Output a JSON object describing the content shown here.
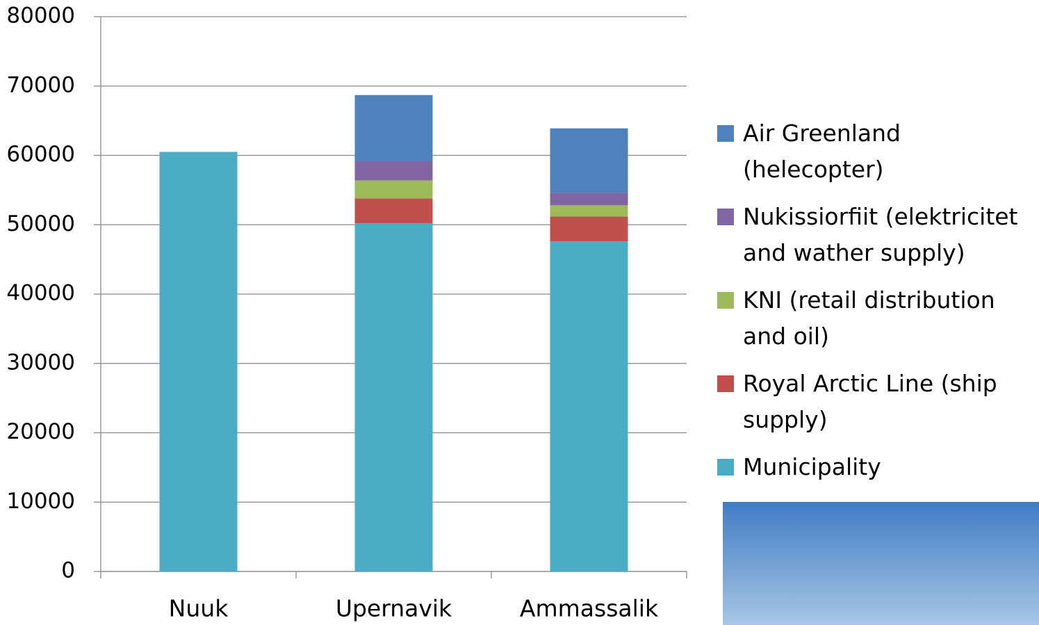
{
  "chart_data": {
    "type": "stacked_bar",
    "categories": [
      "Nuuk",
      "Upernavik",
      "Ammassalik"
    ],
    "series": [
      {
        "name": "Municipality",
        "color": "#4bacc6",
        "values": [
          60500,
          50200,
          47600
        ]
      },
      {
        "name": "Royal Arctic Line (ship supply)",
        "color": "#c0504d",
        "values": [
          null,
          3600,
          3600
        ]
      },
      {
        "name": "KNI (retail distribution and oil)",
        "color": "#9bbb59",
        "values": [
          null,
          2600,
          1600
        ]
      },
      {
        "name": "Nukissiorfiit (elektricitet and wather supply)",
        "color": "#8064a2",
        "values": [
          null,
          2800,
          1800
        ]
      },
      {
        "name": "Air Greenland (helecopter)",
        "color": "#4f81bd",
        "values": [
          null,
          9500,
          9300
        ]
      }
    ],
    "ylim": [
      0,
      80000
    ],
    "yticks": [
      0,
      10000,
      20000,
      30000,
      40000,
      50000,
      60000,
      70000,
      80000
    ],
    "grid": true,
    "legend": "right"
  }
}
